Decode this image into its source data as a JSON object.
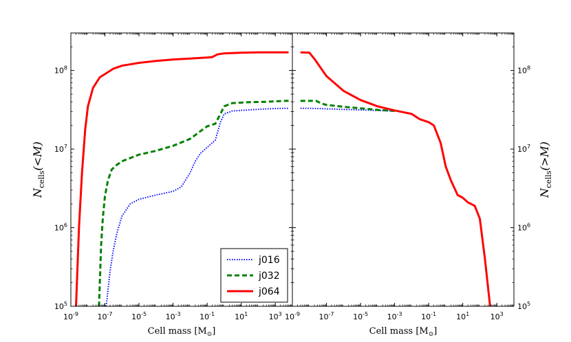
{
  "chart_data": [
    {
      "panel": "left",
      "type": "line",
      "xscale": "log",
      "yscale": "log",
      "xlim": [
        1e-09,
        10000.0
      ],
      "ylim": [
        100000.0,
        300000000.0
      ],
      "xlabel": "Cell mass [M",
      "xlabel_sub": "⊙",
      "xlabel_end": "]",
      "ylabel_main": "N",
      "ylabel_sub": "cells",
      "ylabel_rest": "(<M)",
      "xticks": [
        {
          "v": 1e-09,
          "m": "10",
          "e": "-9"
        },
        {
          "v": 1e-07,
          "m": "10",
          "e": "-7"
        },
        {
          "v": 1e-05,
          "m": "10",
          "e": "-5"
        },
        {
          "v": 0.001,
          "m": "10",
          "e": "-3"
        },
        {
          "v": 0.1,
          "m": "10",
          "e": "-1"
        },
        {
          "v": 10.0,
          "m": "10",
          "e": "1"
        },
        {
          "v": 1000.0,
          "m": "10",
          "e": "3"
        }
      ],
      "yticks": [
        {
          "v": 100000.0,
          "m": "10",
          "e": "5"
        },
        {
          "v": 1000000.0,
          "m": "10",
          "e": "6"
        },
        {
          "v": 10000000.0,
          "m": "10",
          "e": "7"
        },
        {
          "v": 100000000.0,
          "m": "10",
          "e": "8"
        }
      ],
      "legend": {
        "position": "lower-right",
        "entries": [
          "j016",
          "j032",
          "j064"
        ]
      },
      "series": [
        {
          "name": "j016",
          "color": "#0000ff",
          "style": "dotted",
          "points": [
            [
              1.2e-07,
              100000.0
            ],
            [
              1.5e-07,
              160000.0
            ],
            [
              2e-07,
              280000.0
            ],
            [
              3e-07,
              500000.0
            ],
            [
              5e-07,
              850000.0
            ],
            [
              1e-06,
              1400000.0
            ],
            [
              3e-06,
              2000000.0
            ],
            [
              1e-05,
              2300000.0
            ],
            [
              0.0001,
              2600000.0
            ],
            [
              0.001,
              2900000.0
            ],
            [
              0.003,
              3300000.0
            ],
            [
              0.01,
              5000000.0
            ],
            [
              0.02,
              7000000.0
            ],
            [
              0.04,
              8800000.0
            ],
            [
              0.1,
              10500000.0
            ],
            [
              0.3,
              13000000.0
            ],
            [
              0.6,
              22000000.0
            ],
            [
              1,
              28000000.0
            ],
            [
              3,
              30500000.0
            ],
            [
              30,
              31500000.0
            ],
            [
              300,
              32500000.0
            ],
            [
              3000,
              33000000.0
            ],
            [
              6000,
              33000000.0
            ]
          ]
        },
        {
          "name": "j032",
          "color": "#008000",
          "style": "dashed",
          "points": [
            [
              4.5e-08,
              100000.0
            ],
            [
              5e-08,
              200000.0
            ],
            [
              6e-08,
              600000.0
            ],
            [
              7.5e-08,
              1300000.0
            ],
            [
              1e-07,
              2500000.0
            ],
            [
              1.5e-07,
              4000000.0
            ],
            [
              2.5e-07,
              5500000.0
            ],
            [
              5e-07,
              6300000.0
            ],
            [
              1e-06,
              7000000.0
            ],
            [
              1e-05,
              8500000.0
            ],
            [
              0.0001,
              9500000.0
            ],
            [
              0.001,
              11000000.0
            ],
            [
              0.01,
              13500000.0
            ],
            [
              0.05,
              17500000.0
            ],
            [
              0.1,
              19500000.0
            ],
            [
              0.3,
              21000000.0
            ],
            [
              0.6,
              28000000.0
            ],
            [
              1,
              35000000.0
            ],
            [
              3,
              38500000.0
            ],
            [
              30,
              39500000.0
            ],
            [
              300,
              40000000.0
            ],
            [
              3000,
              41000000.0
            ],
            [
              6000,
              41000000.0
            ]
          ]
        },
        {
          "name": "j064",
          "color": "#ff0000",
          "style": "solid",
          "points": [
            [
              2e-09,
              100000.0
            ],
            [
              3e-09,
              1000000.0
            ],
            [
              4.5e-09,
              5000000.0
            ],
            [
              7e-09,
              18000000.0
            ],
            [
              1e-08,
              35000000.0
            ],
            [
              2e-08,
              60000000.0
            ],
            [
              5e-08,
              82000000.0
            ],
            [
              1e-07,
              90000000.0
            ],
            [
              3e-07,
              105000000.0
            ],
            [
              1e-06,
              115000000.0
            ],
            [
              1e-05,
              125000000.0
            ],
            [
              0.0001,
              132000000.0
            ],
            [
              0.001,
              138000000.0
            ],
            [
              0.01,
              142000000.0
            ],
            [
              0.1,
              146000000.0
            ],
            [
              0.2,
              148000000.0
            ],
            [
              0.4,
              160000000.0
            ],
            [
              1,
              165000000.0
            ],
            [
              10,
              168000000.0
            ],
            [
              100,
              170000000.0
            ],
            [
              1000,
              170000000.0
            ],
            [
              6000,
              170000000.0
            ]
          ]
        }
      ]
    },
    {
      "panel": "right",
      "type": "line",
      "xscale": "log",
      "yscale": "log",
      "xlim": [
        1e-09,
        10000.0
      ],
      "ylim": [
        100000.0,
        300000000.0
      ],
      "xlabel": "Cell mass [M",
      "xlabel_sub": "⊙",
      "xlabel_end": "]",
      "ylabel_main": "N",
      "ylabel_sub": "cells",
      "ylabel_rest": "(>M)",
      "xticks": [
        {
          "v": 1e-09,
          "m": "10",
          "e": "-9"
        },
        {
          "v": 1e-07,
          "m": "10",
          "e": "-7"
        },
        {
          "v": 1e-05,
          "m": "10",
          "e": "-5"
        },
        {
          "v": 0.001,
          "m": "10",
          "e": "-3"
        },
        {
          "v": 0.1,
          "m": "10",
          "e": "-1"
        },
        {
          "v": 10.0,
          "m": "10",
          "e": "1"
        },
        {
          "v": 1000.0,
          "m": "10",
          "e": "3"
        }
      ],
      "yticks": [
        {
          "v": 100000.0,
          "m": "10",
          "e": "5"
        },
        {
          "v": 1000000.0,
          "m": "10",
          "e": "6"
        },
        {
          "v": 10000000.0,
          "m": "10",
          "e": "7"
        },
        {
          "v": 100000000.0,
          "m": "10",
          "e": "8"
        }
      ],
      "series": [
        {
          "name": "j016",
          "color": "#0000ff",
          "style": "dotted",
          "points": [
            [
              3e-09,
              33000000.0
            ],
            [
              1e-08,
              33000000.0
            ],
            [
              1e-07,
              32500000.0
            ],
            [
              1e-06,
              32000000.0
            ],
            [
              1e-05,
              31500000.0
            ],
            [
              0.0001,
              31000000.0
            ],
            [
              0.001,
              30500000.0
            ]
          ]
        },
        {
          "name": "j032",
          "color": "#008000",
          "style": "dashed",
          "points": [
            [
              3e-09,
              41000000.0
            ],
            [
              2.5e-08,
              41000000.0
            ],
            [
              5e-08,
              38000000.0
            ],
            [
              1e-07,
              36500000.0
            ],
            [
              1e-06,
              34500000.0
            ],
            [
              1e-05,
              33000000.0
            ],
            [
              0.0001,
              31500000.0
            ],
            [
              0.001,
              30500000.0
            ]
          ]
        },
        {
          "name": "j064",
          "color": "#ff0000",
          "style": "solid",
          "points": [
            [
              3e-09,
              170000000.0
            ],
            [
              1e-08,
              168000000.0
            ],
            [
              2e-08,
              140000000.0
            ],
            [
              5e-08,
              105000000.0
            ],
            [
              1e-07,
              85000000.0
            ],
            [
              1e-06,
              55000000.0
            ],
            [
              1e-05,
              42000000.0
            ],
            [
              0.0001,
              35000000.0
            ],
            [
              0.001,
              31000000.0
            ],
            [
              0.01,
              28000000.0
            ],
            [
              0.03,
              24000000.0
            ],
            [
              0.1,
              22000000.0
            ],
            [
              0.2,
              20000000.0
            ],
            [
              0.5,
              12000000.0
            ],
            [
              1,
              6000000.0
            ],
            [
              2,
              4000000.0
            ],
            [
              5,
              2600000.0
            ],
            [
              10,
              2400000.0
            ],
            [
              20,
              2100000.0
            ],
            [
              50,
              1900000.0
            ],
            [
              100,
              1300000.0
            ],
            [
              200,
              400000.0
            ],
            [
              400,
              100000.0
            ]
          ]
        }
      ]
    }
  ]
}
